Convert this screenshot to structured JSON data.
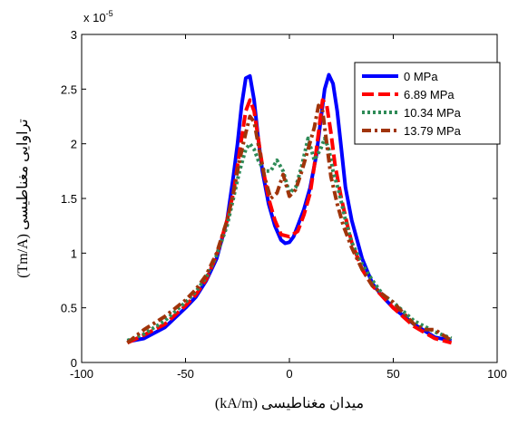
{
  "chart_data": {
    "type": "line",
    "xlabel": "میدان مغناطیسی (kA/m)",
    "ylabel": "تراوایی مغناطیسی (Tm/A)",
    "y_scale_label": "x 10",
    "y_scale_exponent": "-5",
    "xlim": [
      -100,
      100
    ],
    "ylim": [
      0,
      3
    ],
    "x_ticks": [
      -100,
      -50,
      0,
      50,
      100
    ],
    "x_tick_labels": [
      "-100",
      "-50",
      "0",
      "50",
      "100"
    ],
    "y_ticks": [
      0,
      0.5,
      1,
      1.5,
      2,
      2.5,
      3
    ],
    "y_tick_labels": [
      "0",
      "0.5",
      "1",
      "1.5",
      "2",
      "2.5",
      "3"
    ],
    "grid": false,
    "legend_position": "top-right",
    "series": [
      {
        "name": "0 MPa",
        "color": "#0000ff",
        "dash": "solid",
        "x": [
          -78,
          -70,
          -60,
          -50,
          -45,
          -40,
          -35,
          -30,
          -27,
          -25,
          -23,
          -21,
          -19,
          -17,
          -15,
          -13,
          -10,
          -7,
          -4,
          -2,
          0,
          2,
          4,
          7,
          10,
          13,
          15,
          17,
          19,
          21,
          23,
          25,
          27,
          30,
          35,
          40,
          45,
          50,
          60,
          70,
          78
        ],
        "y": [
          0.19,
          0.22,
          0.32,
          0.5,
          0.6,
          0.75,
          0.95,
          1.3,
          1.7,
          2.0,
          2.35,
          2.6,
          2.62,
          2.4,
          2.05,
          1.75,
          1.45,
          1.25,
          1.12,
          1.09,
          1.1,
          1.15,
          1.25,
          1.4,
          1.6,
          1.9,
          2.2,
          2.5,
          2.63,
          2.55,
          2.3,
          1.95,
          1.6,
          1.3,
          0.95,
          0.72,
          0.6,
          0.5,
          0.35,
          0.23,
          0.2
        ]
      },
      {
        "name": "6.89 MPa",
        "color": "#ff0000",
        "dash": "dashed",
        "x": [
          -78,
          -70,
          -60,
          -50,
          -45,
          -40,
          -35,
          -30,
          -27,
          -25,
          -23,
          -21,
          -19,
          -17,
          -15,
          -13,
          -10,
          -7,
          -4,
          0,
          4,
          7,
          10,
          12,
          14,
          16,
          18,
          20,
          22,
          25,
          28,
          30,
          35,
          40,
          45,
          50,
          60,
          70,
          78
        ],
        "y": [
          0.18,
          0.25,
          0.35,
          0.52,
          0.62,
          0.76,
          0.98,
          1.3,
          1.55,
          1.8,
          2.05,
          2.3,
          2.4,
          2.3,
          2.05,
          1.8,
          1.5,
          1.3,
          1.17,
          1.15,
          1.2,
          1.35,
          1.55,
          1.8,
          2.1,
          2.4,
          2.35,
          2.1,
          1.8,
          1.5,
          1.25,
          1.1,
          0.85,
          0.7,
          0.6,
          0.5,
          0.33,
          0.22,
          0.18
        ]
      },
      {
        "name": "10.34 MPa",
        "color": "#2e8b57",
        "dash": "dotted",
        "x": [
          -78,
          -70,
          -60,
          -50,
          -45,
          -40,
          -35,
          -30,
          -27,
          -24,
          -21,
          -19,
          -17,
          -15,
          -12,
          -9,
          -6,
          -3,
          0,
          3,
          6,
          9,
          12,
          15,
          17,
          19,
          21,
          24,
          27,
          30,
          35,
          40,
          45,
          50,
          60,
          70,
          78
        ],
        "y": [
          0.2,
          0.26,
          0.38,
          0.55,
          0.65,
          0.78,
          0.98,
          1.25,
          1.5,
          1.75,
          1.95,
          2.0,
          1.95,
          1.85,
          1.75,
          1.75,
          1.85,
          1.75,
          1.55,
          1.6,
          1.8,
          2.05,
          1.85,
          1.95,
          2.05,
          1.95,
          1.75,
          1.55,
          1.3,
          1.1,
          0.9,
          0.75,
          0.62,
          0.55,
          0.38,
          0.28,
          0.22
        ]
      },
      {
        "name": "13.79 MPa",
        "color": "#a0340a",
        "dash": "dashdot",
        "x": [
          -78,
          -70,
          -60,
          -50,
          -45,
          -40,
          -35,
          -30,
          -27,
          -24,
          -21,
          -19,
          -17,
          -15,
          -12,
          -9,
          -6,
          -3,
          0,
          3,
          6,
          9,
          12,
          14,
          16,
          18,
          20,
          23,
          26,
          30,
          35,
          40,
          45,
          50,
          55,
          60,
          65,
          70,
          78
        ],
        "y": [
          0.18,
          0.3,
          0.42,
          0.57,
          0.67,
          0.8,
          1.0,
          1.3,
          1.55,
          1.85,
          2.1,
          2.25,
          2.2,
          2.0,
          1.7,
          1.5,
          1.55,
          1.72,
          1.52,
          1.58,
          1.75,
          1.95,
          2.15,
          2.35,
          2.3,
          2.0,
          1.7,
          1.45,
          1.25,
          1.05,
          0.85,
          0.7,
          0.62,
          0.55,
          0.45,
          0.35,
          0.3,
          0.3,
          0.2
        ]
      }
    ]
  }
}
